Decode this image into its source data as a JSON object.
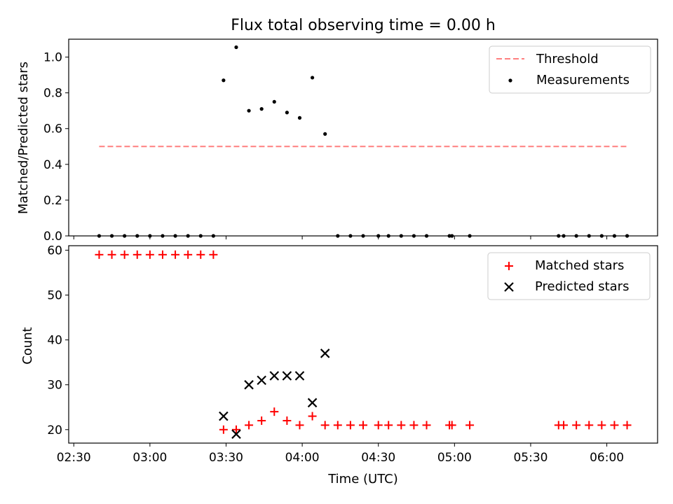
{
  "chart_data": [
    {
      "type": "scatter",
      "title": "Flux total observing time = 0.00 h",
      "xlabel": "",
      "ylabel": "Matched/Predicted stars",
      "ylim": [
        0,
        1.1
      ],
      "yticks": [
        "0.0",
        "0.2",
        "0.4",
        "0.6",
        "0.8",
        "1.0"
      ],
      "ytick_values": [
        0,
        0.2,
        0.4,
        0.6,
        0.8,
        1.0
      ],
      "legend_position": "upper right",
      "threshold": {
        "name": "Threshold",
        "value": 0.5,
        "x_start": "02:40",
        "x_end": "06:08",
        "color": "#ff7f7f",
        "style": "dashed"
      },
      "series": [
        {
          "name": "Measurements",
          "marker": "dot",
          "color": "#000000",
          "points": [
            [
              "02:40",
              0
            ],
            [
              "02:45",
              0
            ],
            [
              "02:50",
              0
            ],
            [
              "02:55",
              0
            ],
            [
              "03:00",
              0
            ],
            [
              "03:05",
              0
            ],
            [
              "03:10",
              0
            ],
            [
              "03:15",
              0
            ],
            [
              "03:20",
              0
            ],
            [
              "03:25",
              0
            ],
            [
              "03:29",
              0.87
            ],
            [
              "03:34",
              1.055
            ],
            [
              "03:39",
              0.7
            ],
            [
              "03:44",
              0.71
            ],
            [
              "03:49",
              0.75
            ],
            [
              "03:54",
              0.69
            ],
            [
              "03:59",
              0.66
            ],
            [
              "04:04",
              0.885
            ],
            [
              "04:09",
              0.57
            ],
            [
              "04:14",
              0
            ],
            [
              "04:19",
              0
            ],
            [
              "04:24",
              0
            ],
            [
              "04:30",
              0
            ],
            [
              "04:34",
              0
            ],
            [
              "04:39",
              0
            ],
            [
              "04:44",
              0
            ],
            [
              "04:49",
              0
            ],
            [
              "04:58",
              0
            ],
            [
              "04:59",
              0
            ],
            [
              "05:06",
              0
            ],
            [
              "05:41",
              0
            ],
            [
              "05:43",
              0
            ],
            [
              "05:48",
              0
            ],
            [
              "05:53",
              0
            ],
            [
              "05:58",
              0
            ],
            [
              "06:03",
              0
            ],
            [
              "06:08",
              0
            ]
          ]
        }
      ]
    },
    {
      "type": "scatter",
      "title": "",
      "xlabel": "Time (UTC)",
      "ylabel": "Count",
      "ylim": [
        17,
        61
      ],
      "yticks": [
        "20",
        "30",
        "40",
        "50",
        "60"
      ],
      "ytick_values": [
        20,
        30,
        40,
        50,
        60
      ],
      "xticks": [
        "02:30",
        "03:00",
        "03:30",
        "04:00",
        "04:30",
        "05:00",
        "05:30",
        "06:00"
      ],
      "xlim": [
        "02:28",
        "06:20"
      ],
      "legend_position": "upper right",
      "series": [
        {
          "name": "Matched stars",
          "marker": "plus",
          "color": "#ff0000",
          "points": [
            [
              "02:40",
              59
            ],
            [
              "02:45",
              59
            ],
            [
              "02:50",
              59
            ],
            [
              "02:55",
              59
            ],
            [
              "03:00",
              59
            ],
            [
              "03:05",
              59
            ],
            [
              "03:10",
              59
            ],
            [
              "03:15",
              59
            ],
            [
              "03:20",
              59
            ],
            [
              "03:25",
              59
            ],
            [
              "03:29",
              20
            ],
            [
              "03:34",
              20
            ],
            [
              "03:39",
              21
            ],
            [
              "03:44",
              22
            ],
            [
              "03:49",
              24
            ],
            [
              "03:54",
              22
            ],
            [
              "03:59",
              21
            ],
            [
              "04:04",
              23
            ],
            [
              "04:09",
              21
            ],
            [
              "04:14",
              21
            ],
            [
              "04:19",
              21
            ],
            [
              "04:24",
              21
            ],
            [
              "04:30",
              21
            ],
            [
              "04:34",
              21
            ],
            [
              "04:39",
              21
            ],
            [
              "04:44",
              21
            ],
            [
              "04:49",
              21
            ],
            [
              "04:58",
              21
            ],
            [
              "04:59",
              21
            ],
            [
              "05:06",
              21
            ],
            [
              "05:41",
              21
            ],
            [
              "05:43",
              21
            ],
            [
              "05:48",
              21
            ],
            [
              "05:53",
              21
            ],
            [
              "05:58",
              21
            ],
            [
              "06:03",
              21
            ],
            [
              "06:08",
              21
            ]
          ]
        },
        {
          "name": "Predicted stars",
          "marker": "x",
          "color": "#000000",
          "points": [
            [
              "03:29",
              23
            ],
            [
              "03:34",
              19
            ],
            [
              "03:39",
              30
            ],
            [
              "03:44",
              31
            ],
            [
              "03:49",
              32
            ],
            [
              "03:54",
              32
            ],
            [
              "03:59",
              32
            ],
            [
              "04:04",
              26
            ],
            [
              "04:09",
              37
            ]
          ]
        }
      ]
    }
  ]
}
